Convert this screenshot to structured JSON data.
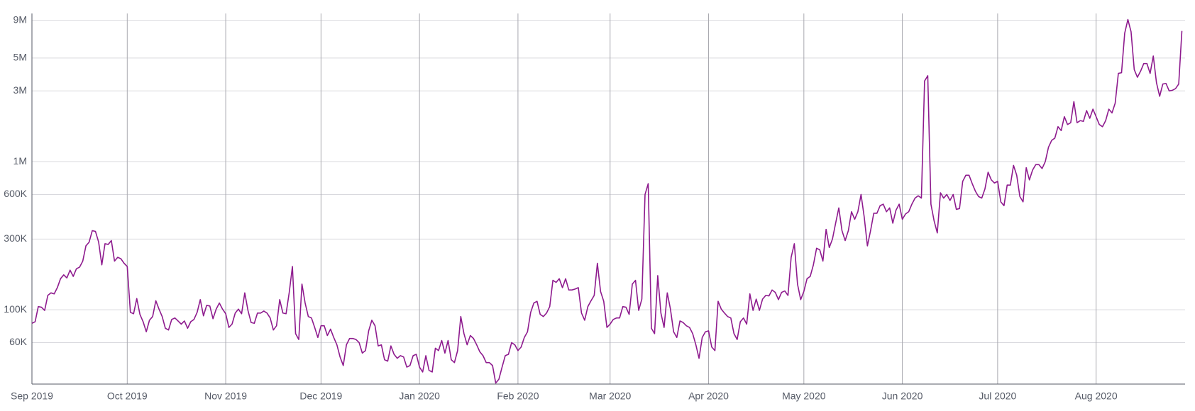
{
  "chart_data": {
    "type": "line",
    "log_scale": true,
    "grid": true,
    "xlim": [
      0,
      363
    ],
    "ylim": [
      31500,
      10000000
    ],
    "xticks": [
      {
        "value": 0,
        "label": "Sep 2019"
      },
      {
        "value": 30,
        "label": "Oct 2019"
      },
      {
        "value": 61,
        "label": "Nov 2019"
      },
      {
        "value": 91,
        "label": "Dec 2019"
      },
      {
        "value": 122,
        "label": "Jan 2020"
      },
      {
        "value": 153,
        "label": "Feb 2020"
      },
      {
        "value": 182,
        "label": "Mar 2020"
      },
      {
        "value": 213,
        "label": "Apr 2020"
      },
      {
        "value": 243,
        "label": "May 2020"
      },
      {
        "value": 274,
        "label": "Jun 2020"
      },
      {
        "value": 304,
        "label": "Jul 2020"
      },
      {
        "value": 335,
        "label": "Aug 2020"
      }
    ],
    "yticks": [
      {
        "value": 60000,
        "label": "60K"
      },
      {
        "value": 100000,
        "label": "100K"
      },
      {
        "value": 300000,
        "label": "300K"
      },
      {
        "value": 600000,
        "label": "600K"
      },
      {
        "value": 1000000,
        "label": "1M"
      },
      {
        "value": 3000000,
        "label": "3M"
      },
      {
        "value": 5000000,
        "label": "5M"
      },
      {
        "value": 9000000,
        "label": "9M"
      }
    ],
    "series": [
      {
        "color": "#8e1b8e",
        "x": [
          0,
          1,
          2,
          3,
          4,
          5,
          6,
          7,
          8,
          9,
          10,
          11,
          12,
          13,
          14,
          15,
          16,
          17,
          18,
          19,
          20,
          21,
          22,
          23,
          24,
          25,
          26,
          27,
          28,
          29,
          30,
          31,
          32,
          33,
          34,
          35,
          36,
          37,
          38,
          39,
          40,
          41,
          42,
          43,
          44,
          45,
          46,
          47,
          48,
          49,
          50,
          51,
          52,
          53,
          54,
          55,
          56,
          57,
          58,
          59,
          60,
          61,
          62,
          63,
          64,
          65,
          66,
          67,
          68,
          69,
          70,
          71,
          72,
          73,
          74,
          75,
          76,
          77,
          78,
          79,
          80,
          81,
          82,
          83,
          84,
          85,
          86,
          87,
          88,
          89,
          90,
          91,
          92,
          93,
          94,
          95,
          96,
          97,
          98,
          99,
          100,
          101,
          102,
          103,
          104,
          105,
          106,
          107,
          108,
          109,
          110,
          111,
          112,
          113,
          114,
          115,
          116,
          117,
          118,
          119,
          120,
          121,
          122,
          123,
          124,
          125,
          126,
          127,
          128,
          129,
          130,
          131,
          132,
          133,
          134,
          135,
          136,
          137,
          138,
          139,
          140,
          141,
          142,
          143,
          144,
          145,
          146,
          147,
          148,
          149,
          150,
          151,
          152,
          153,
          154,
          155,
          156,
          157,
          158,
          159,
          160,
          161,
          162,
          163,
          164,
          165,
          166,
          167,
          168,
          169,
          170,
          171,
          172,
          173,
          174,
          175,
          176,
          177,
          178,
          179,
          180,
          181,
          182,
          183,
          184,
          185,
          186,
          187,
          188,
          189,
          190,
          191,
          192,
          193,
          194,
          195,
          196,
          197,
          198,
          199,
          200,
          201,
          202,
          203,
          204,
          205,
          206,
          207,
          208,
          209,
          210,
          211,
          212,
          213,
          214,
          215,
          216,
          217,
          218,
          219,
          220,
          221,
          222,
          223,
          224,
          225,
          226,
          227,
          228,
          229,
          230,
          231,
          232,
          233,
          234,
          235,
          236,
          237,
          238,
          239,
          240,
          241,
          242,
          243,
          244,
          245,
          246,
          247,
          248,
          249,
          250,
          251,
          252,
          253,
          254,
          255,
          256,
          257,
          258,
          259,
          260,
          261,
          262,
          263,
          264,
          265,
          266,
          267,
          268,
          269,
          270,
          271,
          272,
          273,
          274,
          275,
          276,
          277,
          278,
          279,
          280,
          281,
          282,
          283,
          284,
          285,
          286,
          287,
          288,
          289,
          290,
          291,
          292,
          293,
          294,
          295,
          296,
          297,
          298,
          299,
          300,
          301,
          302,
          303,
          304,
          305,
          306,
          307,
          308,
          309,
          310,
          311,
          312,
          313,
          314,
          315,
          316,
          317,
          318,
          319,
          320,
          321,
          322,
          323,
          324,
          325,
          326,
          327,
          328,
          329,
          330,
          331,
          332,
          333,
          334,
          335,
          336,
          337,
          338,
          339,
          340,
          341,
          342,
          343,
          344,
          345,
          346,
          347,
          348,
          349,
          350,
          351,
          352,
          353,
          354,
          355,
          356,
          357,
          358,
          359,
          360,
          361,
          362
        ],
        "values": [
          81000,
          83000,
          105000,
          104000,
          99000,
          125000,
          130000,
          128000,
          141000,
          162000,
          172000,
          164000,
          185000,
          168000,
          189000,
          194000,
          213000,
          270000,
          286000,
          342000,
          338000,
          286000,
          201000,
          279000,
          276000,
          293000,
          213000,
          226000,
          221000,
          206000,
          196000,
          96000,
          94000,
          119000,
          93000,
          83000,
          71000,
          85000,
          90000,
          115000,
          101000,
          90000,
          75000,
          73000,
          86000,
          88000,
          84000,
          80000,
          84000,
          75000,
          83000,
          86000,
          96000,
          117000,
          91000,
          107000,
          106000,
          87000,
          101000,
          111000,
          101000,
          94000,
          76000,
          80000,
          95000,
          101000,
          94000,
          130000,
          99000,
          82000,
          81000,
          95000,
          95000,
          98000,
          95000,
          88000,
          73000,
          78000,
          117000,
          95000,
          94000,
          131000,
          196000,
          69000,
          63000,
          149000,
          111000,
          90000,
          88000,
          76000,
          65000,
          78000,
          78000,
          67000,
          74000,
          65000,
          58000,
          48000,
          42000,
          58000,
          64000,
          64000,
          63000,
          60000,
          51000,
          53000,
          72000,
          85000,
          78000,
          57000,
          58000,
          46000,
          45000,
          57000,
          50000,
          47000,
          49000,
          48000,
          41000,
          42000,
          49000,
          50000,
          41000,
          38000,
          49000,
          39000,
          38000,
          55000,
          53000,
          62000,
          51000,
          62000,
          46000,
          44000,
          53000,
          90000,
          69000,
          58000,
          67000,
          64000,
          58000,
          52000,
          49000,
          44000,
          44000,
          42000,
          32000,
          34000,
          41000,
          49000,
          50000,
          60000,
          58000,
          53000,
          56000,
          65000,
          71000,
          96000,
          111000,
          114000,
          93000,
          90000,
          95000,
          105000,
          158000,
          153000,
          162000,
          141000,
          162000,
          136000,
          136000,
          138000,
          141000,
          95000,
          85000,
          105000,
          115000,
          125000,
          206000,
          133000,
          114000,
          76000,
          80000,
          86000,
          88000,
          88000,
          105000,
          104000,
          93000,
          149000,
          158000,
          99000,
          118000,
          600000,
          710000,
          75000,
          69000,
          170000,
          95000,
          76000,
          130000,
          101000,
          71000,
          65000,
          84000,
          82000,
          78000,
          76000,
          69000,
          58000,
          47000,
          65000,
          71000,
          72000,
          56000,
          53000,
          114000,
          101000,
          95000,
          90000,
          88000,
          69000,
          63000,
          83000,
          88000,
          80000,
          128000,
          99000,
          118000,
          99000,
          118000,
          125000,
          124000,
          136000,
          131000,
          117000,
          131000,
          134000,
          125000,
          226000,
          279000,
          149000,
          117000,
          133000,
          162000,
          168000,
          201000,
          260000,
          254000,
          213000,
          349000,
          263000,
          300000,
          384000,
          487000,
          342000,
          293000,
          342000,
          459000,
          408000,
          459000,
          600000,
          422000,
          270000,
          342000,
          448000,
          448000,
          504000,
          516000,
          459000,
          487000,
          384000,
          470000,
          516000,
          408000,
          443000,
          459000,
          516000,
          567000,
          588000,
          567000,
          3500000,
          3800000,
          516000,
          398000,
          330000,
          616000,
          567000,
          600000,
          547000,
          600000,
          476000,
          482000,
          736000,
          809000,
          809000,
          710000,
          631000,
          581000,
          567000,
          654000,
          848000,
          753000,
          717000,
          736000,
          535000,
          504000,
          694000,
          694000,
          943000,
          809000,
          581000,
          535000,
          909000,
          753000,
          877000,
          954000,
          954000,
          898000,
          1000000,
          1250000,
          1390000,
          1440000,
          1720000,
          1620000,
          2010000,
          1780000,
          1830000,
          2540000,
          1830000,
          1890000,
          1870000,
          2210000,
          1960000,
          2260000,
          2010000,
          1780000,
          1720000,
          1890000,
          2260000,
          2130000,
          2480000,
          3940000,
          3980000,
          7360000,
          9100000,
          7530000,
          4180000,
          3710000,
          4080000,
          4590000,
          4590000,
          3940000,
          5160000,
          3410000,
          2760000,
          3340000,
          3370000,
          3000000,
          3030000,
          3110000,
          3340000,
          7620000
        ]
      }
    ]
  }
}
